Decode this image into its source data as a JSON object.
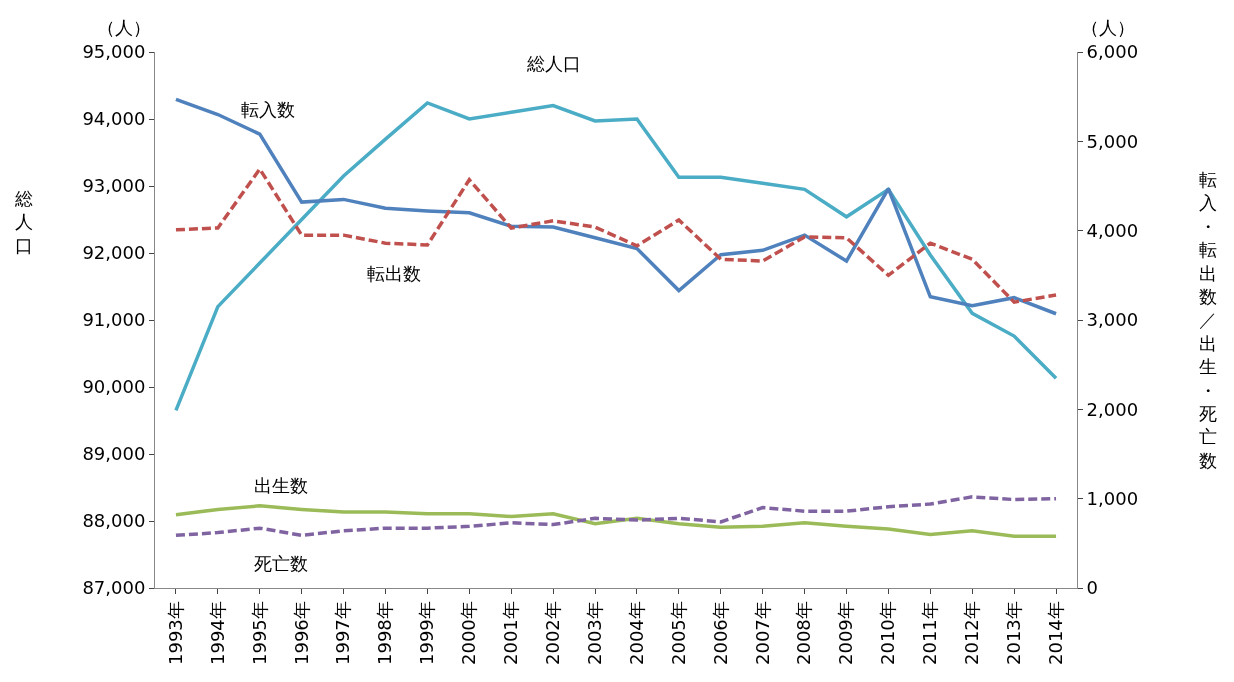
{
  "chart_data": {
    "type": "line",
    "ylabel": "総人口",
    "y2label": "転入・転出数／出生・死亡数",
    "annotations": [
      "（人）",
      "（人）"
    ],
    "categories": [
      "1993年",
      "1994年",
      "1995年",
      "1996年",
      "1997年",
      "1998年",
      "1999年",
      "2000年",
      "2001年",
      "2002年",
      "2003年",
      "2004年",
      "2005年",
      "2006年",
      "2007年",
      "2008年",
      "2009年",
      "2010年",
      "2011年",
      "2012年",
      "2013年",
      "2014年"
    ],
    "ylim": [
      87000,
      95000
    ],
    "yticks": [
      {
        "value": 87000,
        "label": "87,000"
      },
      {
        "value": 88000,
        "label": "88,000"
      },
      {
        "value": 89000,
        "label": "89,000"
      },
      {
        "value": 90000,
        "label": "90,000"
      },
      {
        "value": 91000,
        "label": "91,000"
      },
      {
        "value": 92000,
        "label": "92,000"
      },
      {
        "value": 93000,
        "label": "93,000"
      },
      {
        "value": 94000,
        "label": "94,000"
      },
      {
        "value": 95000,
        "label": "95,000"
      }
    ],
    "y2lim": [
      0,
      6000
    ],
    "y2ticks": [
      0,
      {
        "value": 1000,
        "label": "1,000"
      },
      {
        "value": 2000,
        "label": "2,000"
      },
      {
        "value": 3000,
        "label": "3,000"
      },
      {
        "value": 4000,
        "label": "4,000"
      },
      {
        "value": 5000,
        "label": "5,000"
      },
      {
        "value": 6000,
        "label": "6,000"
      }
    ],
    "legend": false,
    "marker": "none",
    "series": [
      {
        "name": "総人口",
        "color": "#4bacc6",
        "line_style": "solid",
        "values": [
          89650,
          91200,
          91850,
          92500,
          93150,
          93700,
          94240,
          94000,
          94100,
          94200,
          93970,
          94000,
          93130,
          93130,
          93040,
          92950,
          92540,
          92950,
          91970,
          91100,
          90760,
          90130
        ]
      },
      {
        "name": "転入数",
        "color": "#4f81bd",
        "line_style": "solid",
        "axis": "y2",
        "values": [
          5470,
          5300,
          5080,
          4320,
          4350,
          4250,
          4220,
          4200,
          4050,
          4040,
          3920,
          3800,
          3330,
          3730,
          3780,
          3950,
          3660,
          4470,
          3260,
          3160,
          3250,
          3070
        ]
      },
      {
        "name": "転出数",
        "color": "#c0504d",
        "line_style": "dashed",
        "axis": "y2",
        "values": [
          4010,
          4030,
          4690,
          3950,
          3950,
          3860,
          3840,
          4570,
          4030,
          4110,
          4040,
          3830,
          4120,
          3680,
          3660,
          3930,
          3920,
          3500,
          3860,
          3680,
          3200,
          3280
        ]
      },
      {
        "name": "出生数",
        "color": "#9bbb59",
        "line_style": "solid",
        "axis": "y2",
        "values": [
          820,
          880,
          920,
          880,
          850,
          850,
          830,
          830,
          800,
          830,
          720,
          780,
          720,
          680,
          690,
          730,
          690,
          660,
          600,
          640,
          580,
          580
        ]
      },
      {
        "name": "死亡数",
        "color": "#8064a2",
        "line_style": "dashed",
        "axis": "y2",
        "values": [
          590,
          620,
          670,
          590,
          640,
          670,
          670,
          690,
          730,
          710,
          780,
          760,
          780,
          740,
          900,
          860,
          860,
          910,
          940,
          1020,
          990,
          1000
        ]
      }
    ]
  }
}
